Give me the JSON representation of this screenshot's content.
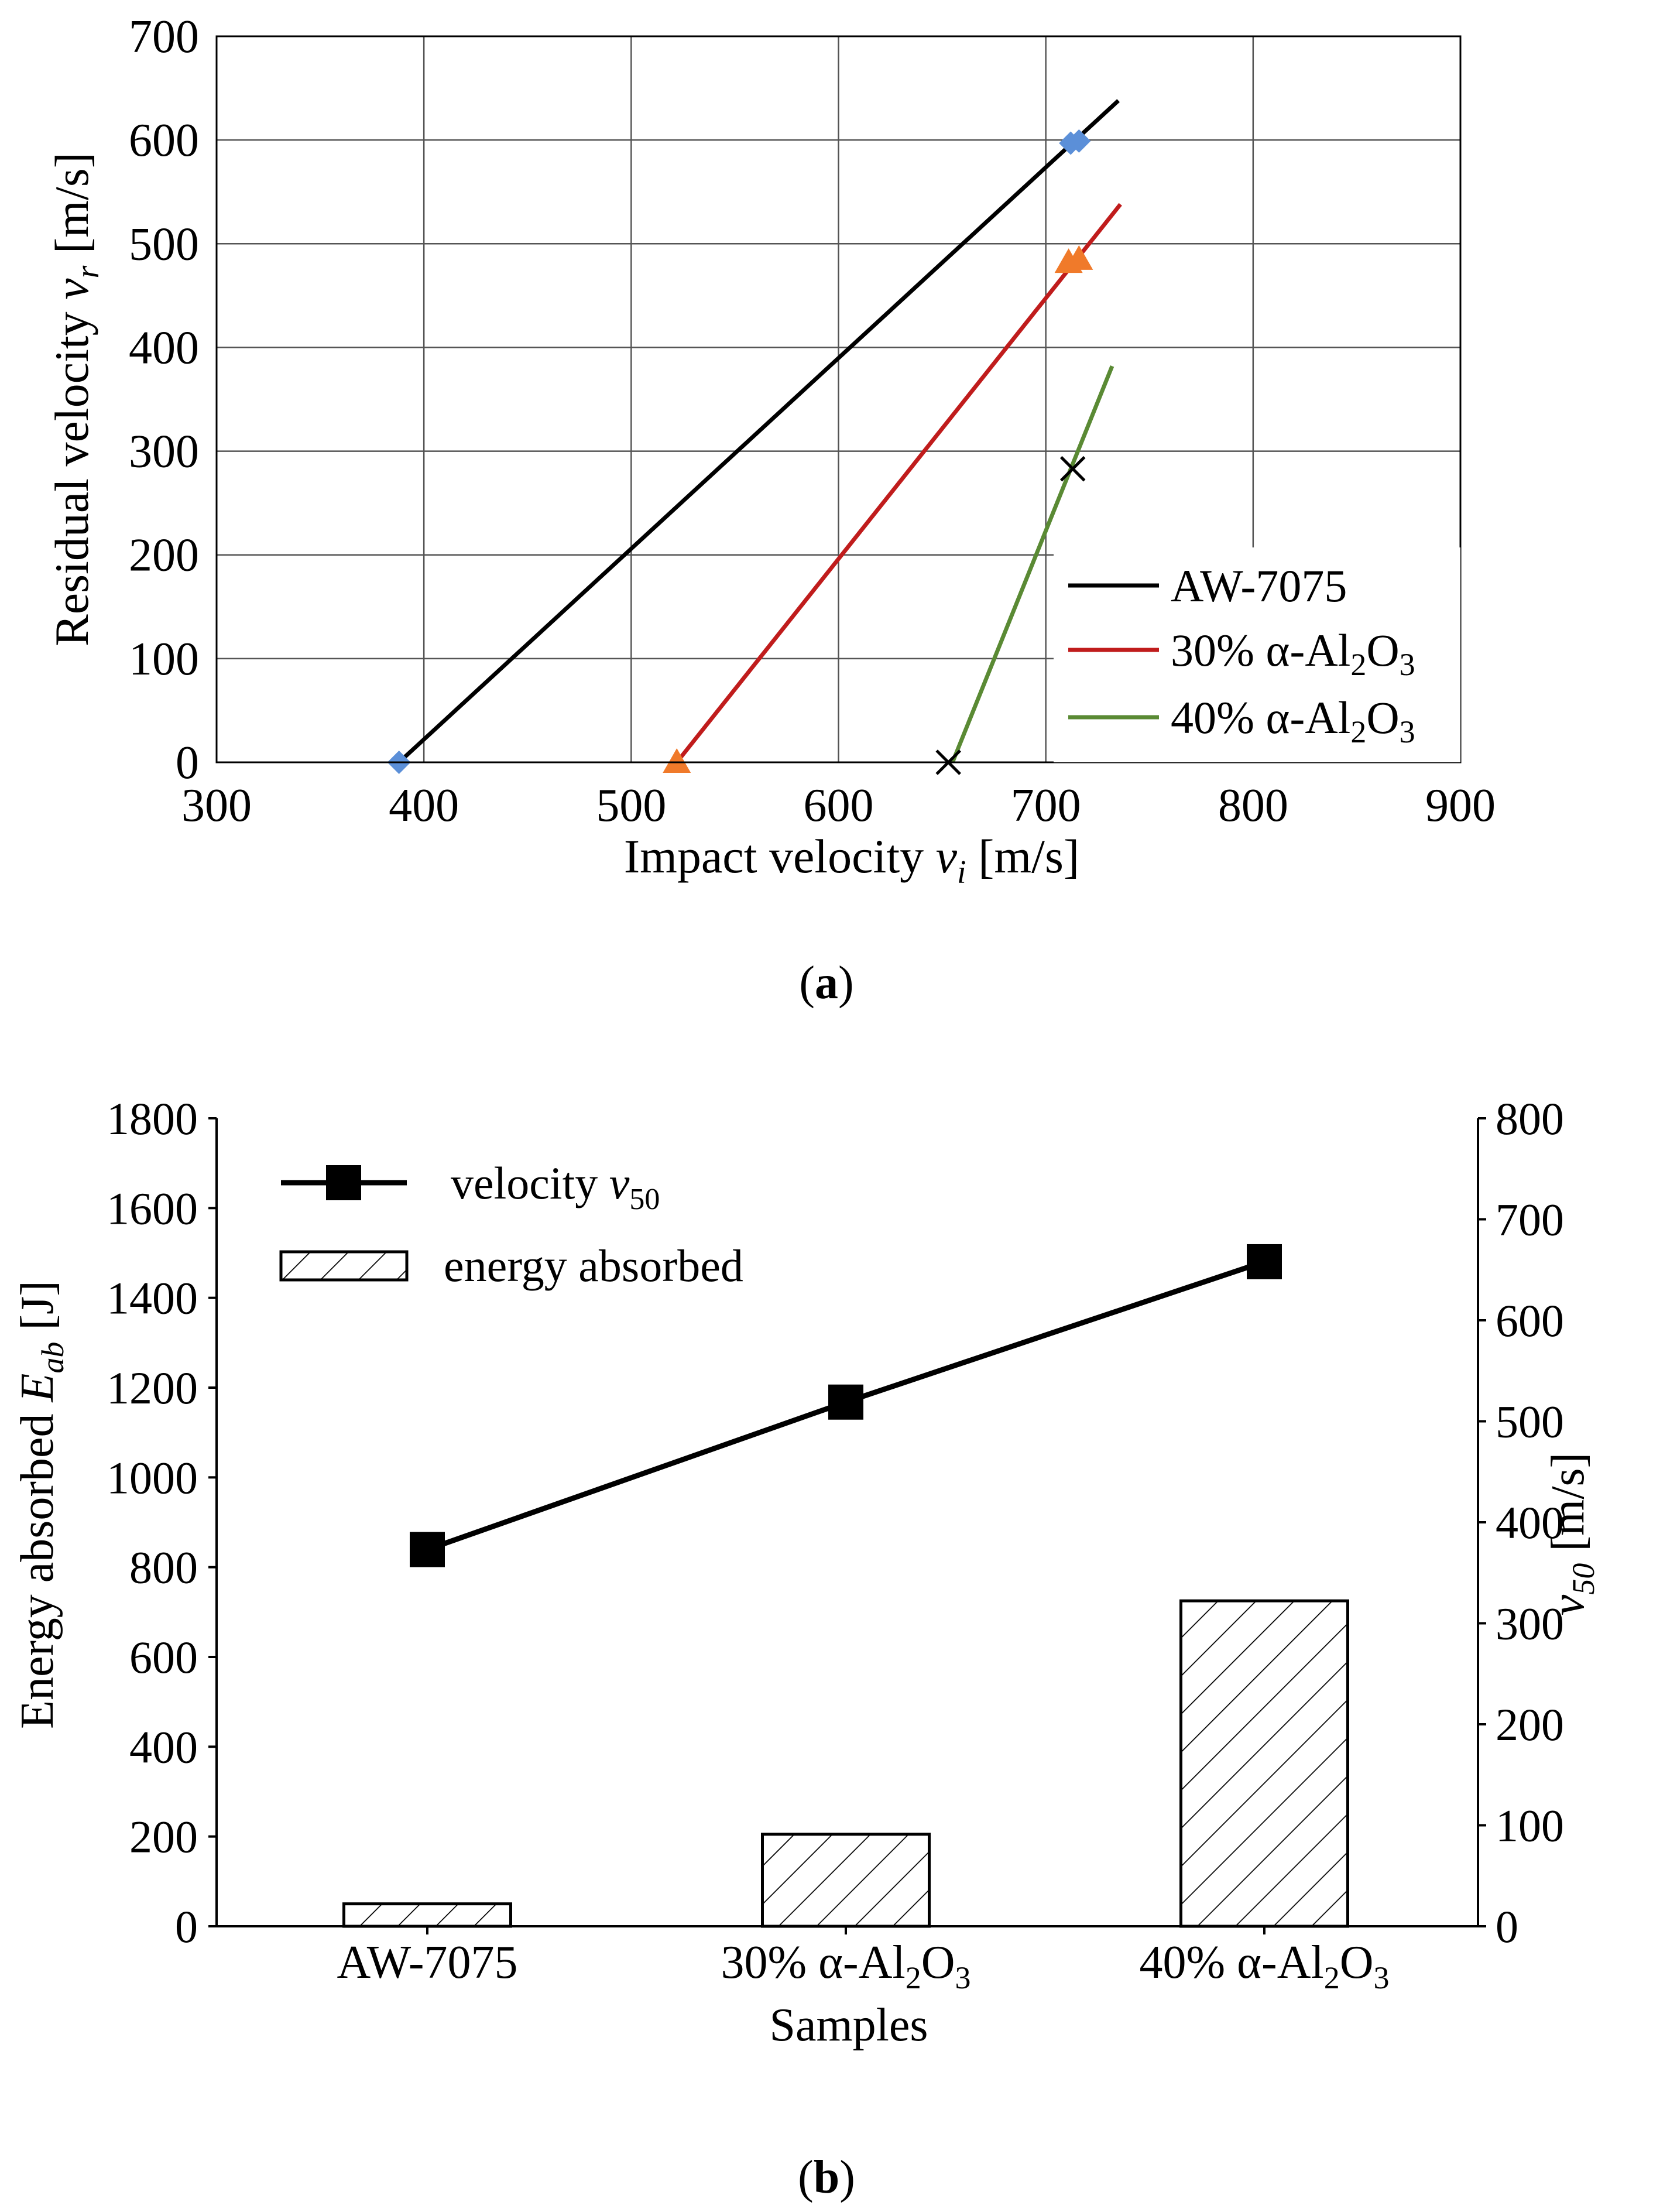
{
  "chart_data": [
    {
      "panel_label": "a",
      "type": "line",
      "xlabel": {
        "main": "Impact velocity ",
        "var": "v",
        "sub": "i",
        "unit": " [m/s]"
      },
      "ylabel": {
        "main": "Residual velocity ",
        "var": "v",
        "sub": "r",
        "unit": " [m/s]"
      },
      "xlim": [
        300,
        900
      ],
      "ylim": [
        0,
        700
      ],
      "xticks": [
        300,
        400,
        500,
        600,
        700,
        800,
        900
      ],
      "yticks": [
        0,
        100,
        200,
        300,
        400,
        500,
        600,
        700
      ],
      "grid": true,
      "legend_position": "bottom-right",
      "series": [
        {
          "name": "AW-7075",
          "legend": {
            "main": "AW-7075"
          },
          "color": "#000000",
          "marker": "diamond",
          "marker_color": "#5b8fd8",
          "line": [
            [
              388,
              0
            ],
            [
              735,
              638
            ]
          ],
          "points": [
            [
              388,
              0
            ],
            [
              712,
              597
            ],
            [
              716,
              599
            ]
          ]
        },
        {
          "name": "30% α-Al2O3",
          "legend": {
            "main": "30% α-Al",
            "s1": "2",
            "mid": "O",
            "s2": "3"
          },
          "color": "#c01c1c",
          "marker": "triangle",
          "marker_color": "#f07a2a",
          "line": [
            [
              522,
              0
            ],
            [
              736,
              538
            ]
          ],
          "points": [
            [
              522,
              0
            ],
            [
              711,
              482
            ],
            [
              716,
              485
            ]
          ]
        },
        {
          "name": "40% α-Al2O3",
          "legend": {
            "main": "40% α-Al",
            "s1": "2",
            "mid": "O",
            "s2": "3"
          },
          "color": "#5a8a34",
          "marker": "x",
          "marker_color": "#000000",
          "line": [
            [
              655,
              0
            ],
            [
              732,
              382
            ]
          ],
          "points": [
            [
              653,
              0
            ],
            [
              713,
              283
            ]
          ]
        }
      ]
    },
    {
      "panel_label": "b",
      "type": "bar",
      "categories": [
        "AW-7075",
        "30% α-Al2O3",
        "40% α-Al2O3"
      ],
      "category_labels": [
        {
          "main": "AW-7075"
        },
        {
          "main": "30% α-Al",
          "s1": "2",
          "mid": "O",
          "s2": "3"
        },
        {
          "main": "40% α-Al",
          "s1": "2",
          "mid": "O",
          "s2": "3"
        }
      ],
      "xlabel": "Samples",
      "ylabel": {
        "main": "Energy absorbed ",
        "var": "E",
        "sub": "ab",
        "unit": " [J]"
      },
      "y2label": {
        "var": "v",
        "sub": "50",
        "unit": " [m/s]"
      },
      "ylim": [
        0,
        1800
      ],
      "yticks": [
        0,
        200,
        400,
        600,
        800,
        1000,
        1200,
        1400,
        1600,
        1800
      ],
      "y2lim": [
        0,
        800
      ],
      "y2ticks": [
        0,
        100,
        200,
        300,
        400,
        500,
        600,
        700,
        800
      ],
      "grid": false,
      "legend_position": "top-left",
      "series": [
        {
          "name": "energy absorbed",
          "legend": {
            "main": "energy absorbed"
          },
          "axis": "left",
          "style": "hatched-bar",
          "values": [
            50,
            205,
            725
          ]
        },
        {
          "name": "velocity v50",
          "legend": {
            "main": "velocity ",
            "var": "v",
            "sub": "50"
          },
          "axis": "right",
          "style": "line-square",
          "values": [
            373,
            519,
            658
          ]
        }
      ]
    }
  ],
  "captions": {
    "a": "a",
    "b": "b"
  }
}
